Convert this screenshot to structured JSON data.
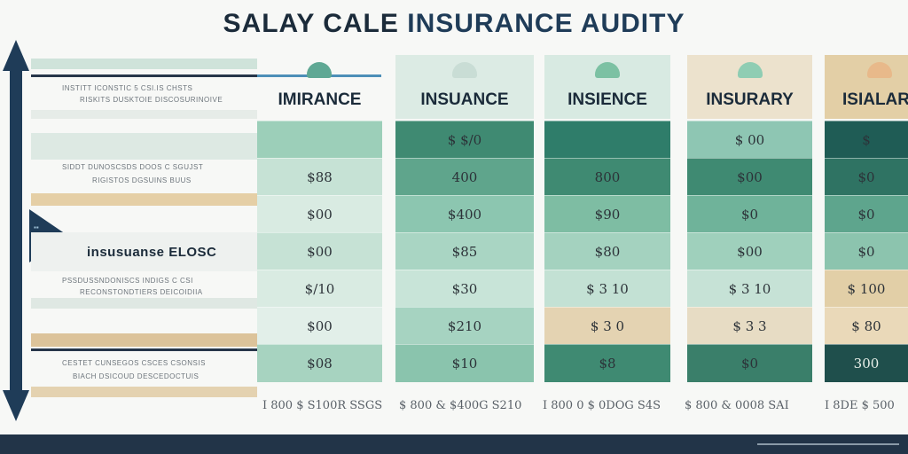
{
  "title": {
    "part1": "SALAY CALE",
    "part2": "INSURANCE AUDITY"
  },
  "left_rows": [
    {
      "text": "INSTITT   ICONSTIC 5 CSI.IS CHSTS",
      "sub": "RISKITS DUSKTOIE DISCOSURINOIVE"
    },
    {
      "text": "SIDDT DUNOSCSDS DOOS C SGUJST",
      "sub": "RIGISTOS DGSUINS BUUS"
    },
    {
      "text": "insusuanse ELOSC",
      "sub": ""
    },
    {
      "text": "PSSDUSSNDONISCS INDIGS C CSI",
      "sub": "RECONSTONDTIERS DEICOIDIIA"
    },
    {
      "text": "CESTET CUNSEGOS CSCES CSONSIS",
      "sub": "BIACH DSICOUD DESCEDOCTUIS"
    }
  ],
  "columns": [
    {
      "header": "IMIRANCE",
      "cells": [
        "",
        "$88",
        "$00",
        "$00",
        "$/10",
        "$00",
        "$08"
      ],
      "footer": "I 800  $ S100R SSGS"
    },
    {
      "header": "INSUANCE",
      "cells": [
        "$ $/0",
        "400",
        "$400",
        "$85",
        "$30",
        "$210",
        "$10"
      ],
      "footer": "$ 800 & $400G S210"
    },
    {
      "header": "INSIENCE",
      "cells": [
        "",
        "800",
        "$90",
        "$80",
        "$ 3 10",
        "$ 3 0",
        "$8"
      ],
      "footer": "I 800 0 $ 0DOG S4S"
    },
    {
      "header": "INSURARY",
      "cells": [
        "$ 00",
        "$00",
        "$0",
        "$00",
        "$ 3 10",
        "$ 3 3",
        "$0"
      ],
      "footer": "$ 800 & 0008 SAI"
    },
    {
      "header": "ISIALAR",
      "cells": [
        "$ ",
        "$0",
        "$0",
        "$0",
        "$ 100",
        "$ 80",
        "300"
      ],
      "footer": "I 8DE  $ 500"
    }
  ],
  "colors": {
    "navy": "#1f3c58",
    "teal_dark": "#3f8a72",
    "mint": "#9ccfb9",
    "sand": "#dcc7a2"
  }
}
